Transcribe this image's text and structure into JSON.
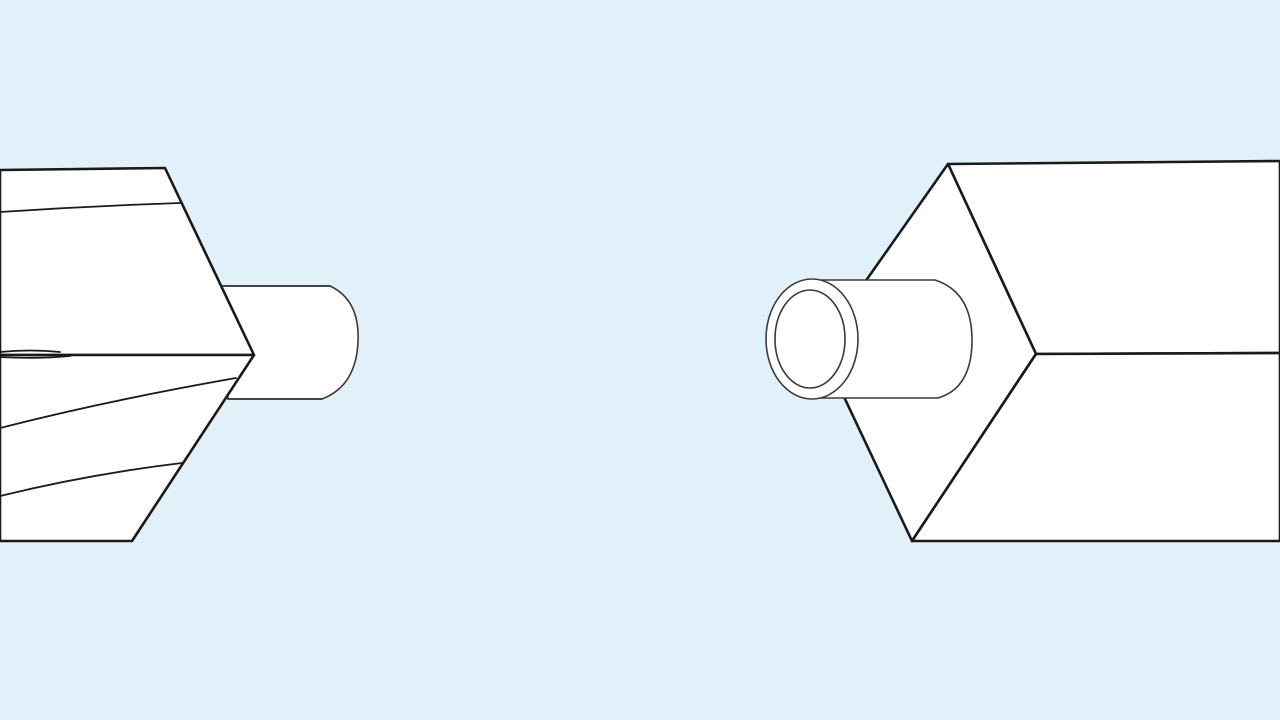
{
  "scene": {
    "background_color": "#e2f1f9",
    "line_color": "#1a1a1a",
    "fill_color": "#ffffff",
    "objects": [
      {
        "name": "left-timber-post",
        "feature": "cylindrical-tenon"
      },
      {
        "name": "right-timber-post",
        "feature": "hollow-tube-socket"
      }
    ]
  }
}
